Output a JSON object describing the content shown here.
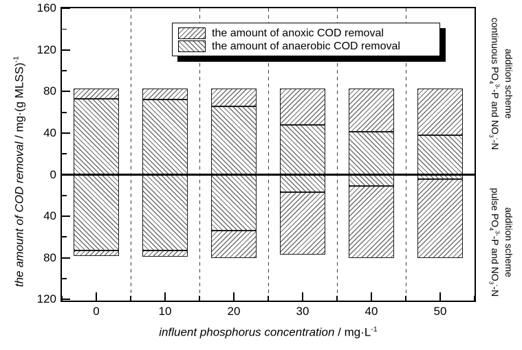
{
  "figure": {
    "background": "#ffffff",
    "ink_color": "#000000",
    "hatch_color": "#6e6e6e"
  },
  "legend": {
    "items": [
      {
        "label": "the amount of anoxic COD removal",
        "hatch": "/"
      },
      {
        "label": "the amount of anaerobic COD removal",
        "hatch": "\\"
      }
    ]
  },
  "labels": {
    "y_axis_parts": [
      {
        "i": 1,
        "v": "the amount of COD removal"
      },
      {
        "v": " / mg·(g MLSS)"
      },
      {
        "sup": "-1"
      }
    ],
    "x_axis_parts": [
      {
        "i": 1,
        "v": "influent phosphorus concentration"
      },
      {
        "v": " / mg·L"
      },
      {
        "sup": "-1"
      }
    ],
    "right_top_line1": [
      {
        "v": "continuous PO"
      },
      {
        "sub": "4"
      },
      {
        "sup": "3-"
      },
      {
        "v": "-P and NO"
      },
      {
        "sub": "3"
      },
      {
        "sup": "-"
      },
      {
        "v": "-N"
      }
    ],
    "right_top_line2": [
      {
        "v": "addition scheme"
      }
    ],
    "right_bottom_line1": [
      {
        "v": "pulse PO"
      },
      {
        "sub": "4"
      },
      {
        "sup": "3-"
      },
      {
        "v": "-P and NO"
      },
      {
        "sub": "3"
      },
      {
        "sup": "-"
      },
      {
        "v": "-N"
      }
    ],
    "right_bottom_line2": [
      {
        "v": "addition scheme"
      }
    ]
  },
  "chart_data": {
    "type": "bar",
    "subtype": "diverging-stacked-bars",
    "title": "",
    "xlabel": "influent phosphorus concentration / mg·L⁻¹",
    "ylabel": "the amount of COD removal / mg·(g MLSS)⁻¹",
    "x": [
      0,
      10,
      20,
      30,
      40,
      50
    ],
    "x_tick_labels": [
      "0",
      "10",
      "20",
      "30",
      "40",
      "50"
    ],
    "y_axis_range_upper": 160,
    "y_axis_range_lower": -120,
    "y_ticks": [
      {
        "v": 160,
        "label": "160"
      },
      {
        "v": 120,
        "label": "120"
      },
      {
        "v": 80,
        "label": "80"
      },
      {
        "v": 40,
        "label": "40"
      },
      {
        "v": 0,
        "label": "0"
      },
      {
        "v": -40,
        "label": "40"
      },
      {
        "v": -80,
        "label": "80"
      },
      {
        "v": -120,
        "label": "120"
      }
    ],
    "y_minor_ticks": [
      140,
      100,
      60,
      20,
      -20,
      -60,
      -100
    ],
    "x_minor_ticks": [
      -5,
      5,
      15,
      25,
      35,
      45,
      55
    ],
    "dashed_lines_x": [
      5,
      15,
      25,
      35,
      45
    ],
    "upper_section_label": "continuous PO4(3-)-P and NO3(-)-N addition scheme (bars above zero)",
    "lower_section_label": "pulse PO4(3-)-P and NO3(-)-N addition scheme (bars below zero, magnitudes)",
    "series": [
      {
        "name": "the amount of anoxic COD removal",
        "hatch": "/",
        "continuous_scheme_values": [
          10,
          11,
          17,
          35,
          42,
          45
        ],
        "pulse_scheme_values": [
          5,
          6,
          26,
          60,
          69,
          76
        ]
      },
      {
        "name": "the amount of anaerobic COD removal",
        "hatch": "\\",
        "continuous_scheme_values": [
          73,
          72,
          66,
          48,
          41,
          38
        ],
        "pulse_scheme_values": [
          73,
          73,
          54,
          17,
          11,
          4
        ]
      }
    ],
    "continuous_scheme_totals": [
      83,
      83,
      83,
      83,
      83,
      83
    ],
    "pulse_scheme_totals": [
      78,
      79,
      80,
      77,
      80,
      80
    ],
    "legend_position": "top-center",
    "grid": false
  }
}
